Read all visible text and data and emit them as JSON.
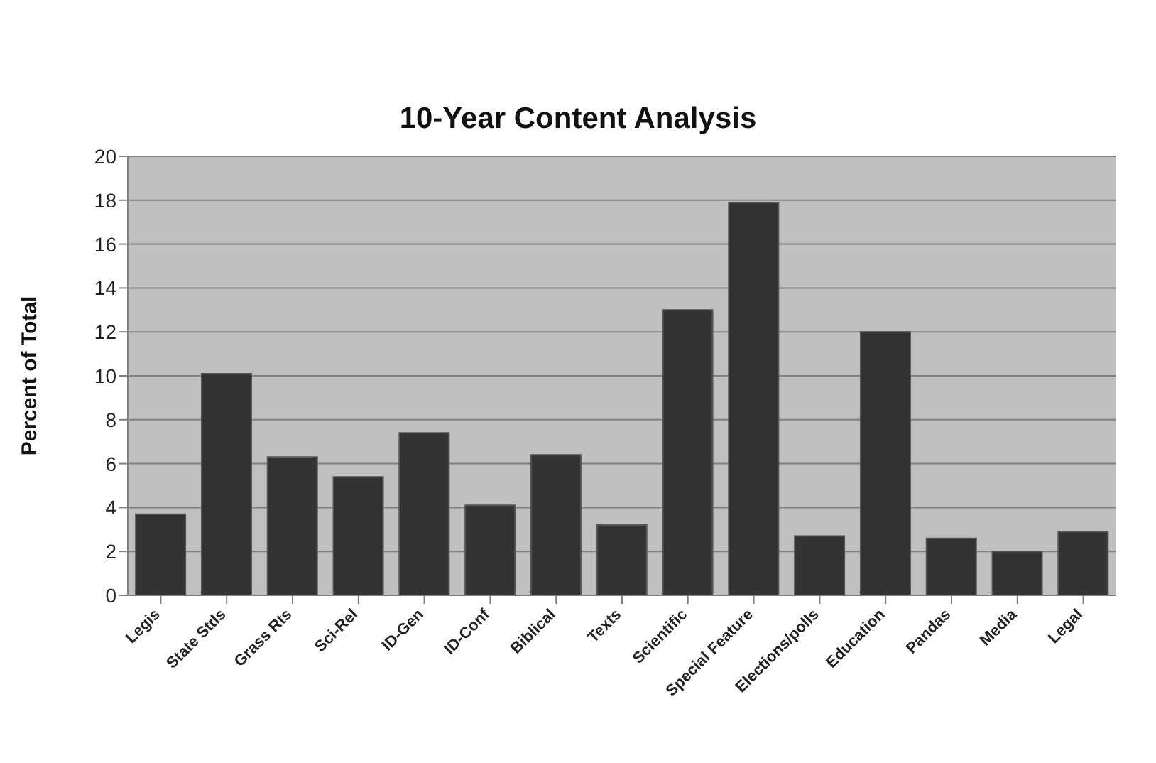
{
  "chart_data": {
    "type": "bar",
    "title": "10-Year Content Analysis",
    "ylabel": "Percent of Total",
    "categories": [
      "Legis",
      "State Stds",
      "Grass Rts",
      "Sci-Rel",
      "ID-Gen",
      "ID-Conf",
      "Biblical",
      "Texts",
      "Scientific",
      "Special Feature",
      "Elections/polls",
      "Education",
      "Pandas",
      "Media",
      "Legal"
    ],
    "values": [
      3.7,
      10.1,
      6.3,
      5.4,
      7.4,
      4.1,
      6.4,
      3.2,
      13.0,
      17.9,
      2.7,
      12.0,
      2.6,
      2.0,
      2.9
    ],
    "color": "#333333",
    "ylim": [
      0,
      20
    ],
    "yticks": [
      0,
      2,
      4,
      6,
      8,
      10,
      12,
      14,
      16,
      18,
      20
    ],
    "grid": "y",
    "legend": false
  }
}
